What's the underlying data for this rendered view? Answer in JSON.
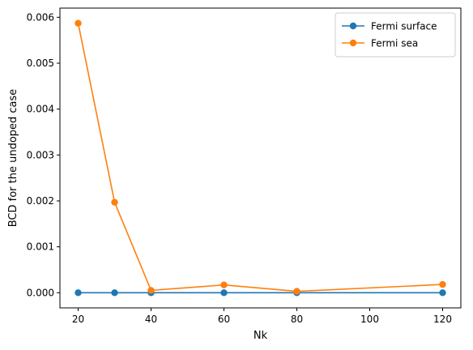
{
  "chart_data": {
    "type": "line",
    "xlabel": "Nk",
    "ylabel": "BCD for the undoped case",
    "xlim": [
      15,
      125
    ],
    "ylim": [
      -0.00033,
      0.0062
    ],
    "xticks": [
      20,
      40,
      60,
      80,
      100,
      120
    ],
    "yticks": [
      0.0,
      0.001,
      0.002,
      0.003,
      0.004,
      0.005,
      0.006
    ],
    "ytick_labels": [
      "0.000",
      "0.001",
      "0.002",
      "0.003",
      "0.004",
      "0.005",
      "0.006"
    ],
    "grid": false,
    "legend_position": "top-right",
    "x": [
      20,
      30,
      40,
      60,
      80,
      120
    ],
    "series": [
      {
        "name": "Fermi surface",
        "color": "#1f77b4",
        "marker": "circle",
        "values": [
          0.0,
          0.0,
          0.0,
          0.0,
          0.0,
          0.0
        ]
      },
      {
        "name": "Fermi sea",
        "color": "#ff7f0e",
        "marker": "circle",
        "values": [
          0.00587,
          0.00197,
          5e-05,
          0.00017,
          3e-05,
          0.00018
        ]
      }
    ]
  }
}
